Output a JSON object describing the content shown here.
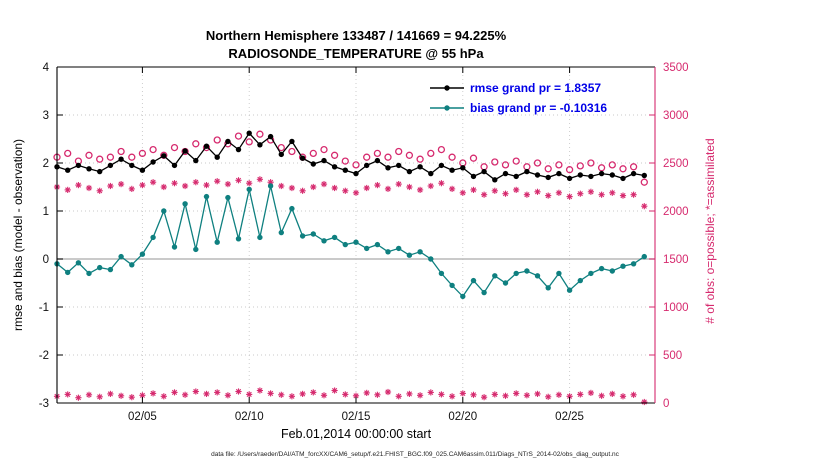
{
  "figure": {
    "title_line1": "Northern Hemisphere 133487 / 141669 = 94.225%",
    "title_line2": "RADIOSONDE_TEMPERATURE @ 55 hPa",
    "footer": "data file: /Users/raeder/DAI/ATM_forcXX/CAM6_setup/f.e21.FHIST_BGC.f09_025.CAM6assim.011/Diags_NTrS_2014-02/obs_diag_output.nc"
  },
  "legend": {
    "rmse_label": "rmse grand pr = 1.8357",
    "bias_label": "bias grand pr = -0.10316",
    "text_color": "#0000e8"
  },
  "chart_data": {
    "type": "line",
    "title": "Northern Hemisphere 133487 / 141669 = 94.225% | RADIOSONDE_TEMPERATURE @ 55 hPa",
    "xlabel": "Feb.01,2014 00:00:00 start",
    "ylabel_left": "rmse and bias (model - observation)",
    "ylabel_right": "# of obs: o=possible; *=assimilated",
    "xlim": [
      1,
      29
    ],
    "ylim_left": [
      -3,
      4
    ],
    "ylim_right": [
      0,
      3500
    ],
    "grid": true,
    "xticks": {
      "values": [
        5,
        10,
        15,
        20,
        25
      ],
      "labels": [
        "02/05",
        "02/10",
        "02/15",
        "02/20",
        "02/25"
      ]
    },
    "yticks_left": {
      "values": [
        -3,
        -2,
        -1,
        0,
        1,
        2,
        3,
        4
      ],
      "labels": [
        "-3",
        "-2",
        "-1",
        "0",
        "1",
        "2",
        "3",
        "4"
      ]
    },
    "yticks_right": {
      "values": [
        0,
        500,
        1000,
        1500,
        2000,
        2500,
        3000,
        3500
      ],
      "labels": [
        "0",
        "500",
        "1000",
        "1500",
        "2000",
        "2500",
        "3000",
        "3500"
      ]
    },
    "colors": {
      "rmse": "#000000",
      "bias": "#0f8080",
      "obs": "#d62a6e",
      "grid": "#c9c9c9",
      "tick_text": "#111111"
    },
    "zero_line": {
      "value": 0,
      "color": "#b8b8b8"
    },
    "x": [
      1,
      1.5,
      2,
      2.5,
      3,
      3.5,
      4,
      4.5,
      5,
      5.5,
      6,
      6.5,
      7,
      7.5,
      8,
      8.5,
      9,
      9.5,
      10,
      10.5,
      11,
      11.5,
      12,
      12.5,
      13,
      13.5,
      14,
      14.5,
      15,
      15.5,
      16,
      16.5,
      17,
      17.5,
      18,
      18.5,
      19,
      19.5,
      20,
      20.5,
      21,
      21.5,
      22,
      22.5,
      23,
      23.5,
      24,
      24.5,
      25,
      25.5,
      26,
      26.5,
      27,
      27.5,
      28,
      28.5
    ],
    "series": [
      {
        "name": "rmse",
        "legend": "rmse grand pr = 1.8357",
        "axis": "left",
        "marker": "dot",
        "line": true,
        "color": "#000000",
        "values": [
          1.92,
          1.85,
          1.95,
          1.88,
          1.82,
          1.95,
          2.08,
          1.95,
          1.85,
          2.02,
          2.15,
          1.95,
          2.25,
          2.05,
          2.35,
          2.12,
          2.45,
          2.28,
          2.62,
          2.38,
          2.55,
          2.18,
          2.45,
          2.1,
          1.98,
          2.05,
          1.92,
          1.85,
          1.78,
          1.95,
          2.05,
          1.9,
          1.95,
          1.82,
          1.92,
          1.78,
          1.95,
          1.85,
          1.9,
          1.72,
          1.82,
          1.65,
          1.78,
          1.72,
          1.82,
          1.75,
          1.7,
          1.78,
          1.68,
          1.75,
          1.72,
          1.78,
          1.75,
          1.68,
          1.78,
          1.74
        ]
      },
      {
        "name": "bias",
        "legend": "bias grand pr = -0.10316",
        "axis": "left",
        "marker": "dot",
        "line": true,
        "color": "#0f8080",
        "values": [
          -0.1,
          -0.28,
          -0.08,
          -0.3,
          -0.18,
          -0.22,
          0.05,
          -0.12,
          0.1,
          0.45,
          1.0,
          0.25,
          1.15,
          0.2,
          1.3,
          0.35,
          1.28,
          0.42,
          1.45,
          0.45,
          1.52,
          0.55,
          1.05,
          0.48,
          0.52,
          0.38,
          0.45,
          0.3,
          0.35,
          0.22,
          0.3,
          0.15,
          0.22,
          0.08,
          0.15,
          0.0,
          -0.3,
          -0.55,
          -0.78,
          -0.45,
          -0.7,
          -0.35,
          -0.5,
          -0.3,
          -0.25,
          -0.35,
          -0.6,
          -0.3,
          -0.65,
          -0.45,
          -0.3,
          -0.2,
          -0.25,
          -0.15,
          -0.1,
          0.05
        ]
      },
      {
        "name": "n_possible",
        "legend": "o=possible",
        "axis": "right",
        "marker": "circle",
        "line": false,
        "color": "#d62a6e",
        "values": [
          2560,
          2600,
          2520,
          2580,
          2540,
          2560,
          2620,
          2560,
          2600,
          2640,
          2580,
          2660,
          2620,
          2700,
          2660,
          2740,
          2700,
          2780,
          2720,
          2800,
          2740,
          2660,
          2620,
          2560,
          2600,
          2640,
          2580,
          2520,
          2480,
          2560,
          2600,
          2560,
          2620,
          2580,
          2540,
          2600,
          2640,
          2560,
          2500,
          2550,
          2460,
          2510,
          2480,
          2520,
          2460,
          2500,
          2440,
          2480,
          2430,
          2470,
          2500,
          2450,
          2480,
          2440,
          2460,
          2300
        ]
      },
      {
        "name": "n_assimilated",
        "legend": "*=assimilated",
        "axis": "right",
        "marker": "asterisk",
        "line": false,
        "color": "#d62a6e",
        "values": [
          2250,
          2220,
          2270,
          2240,
          2210,
          2260,
          2280,
          2230,
          2270,
          2300,
          2250,
          2290,
          2260,
          2300,
          2270,
          2310,
          2280,
          2320,
          2290,
          2330,
          2300,
          2260,
          2240,
          2210,
          2250,
          2280,
          2240,
          2210,
          2190,
          2240,
          2270,
          2230,
          2280,
          2250,
          2220,
          2260,
          2290,
          2230,
          2190,
          2220,
          2170,
          2210,
          2180,
          2220,
          2170,
          2200,
          2160,
          2190,
          2150,
          2180,
          2200,
          2170,
          2190,
          2160,
          2170,
          2050
        ]
      },
      {
        "name": "n_lower_band",
        "legend": "",
        "axis": "right",
        "marker": "asterisk",
        "line": false,
        "color": "#d62a6e",
        "values": [
          70,
          90,
          55,
          85,
          65,
          95,
          75,
          60,
          80,
          100,
          70,
          110,
          85,
          120,
          95,
          110,
          80,
          120,
          90,
          130,
          100,
          85,
          70,
          95,
          110,
          80,
          130,
          90,
          75,
          105,
          85,
          115,
          70,
          95,
          80,
          110,
          90,
          70,
          100,
          85,
          60,
          90,
          75,
          100,
          80,
          95,
          65,
          85,
          70,
          90,
          105,
          75,
          95,
          70,
          85,
          10
        ]
      }
    ]
  }
}
